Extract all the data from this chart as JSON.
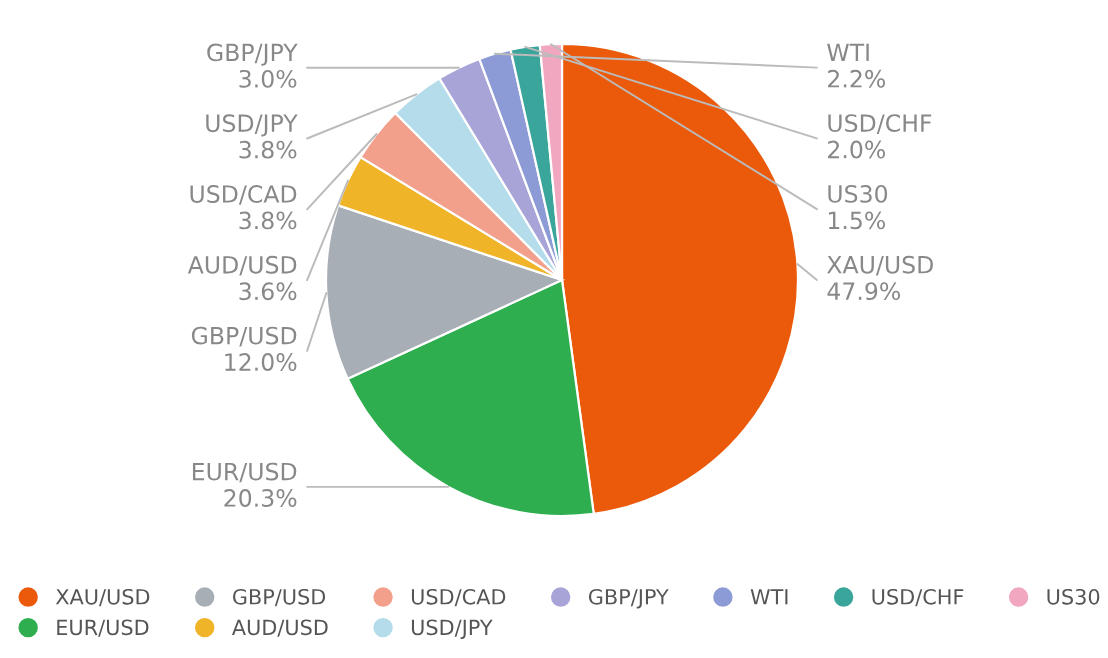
{
  "chart_data": {
    "type": "pie",
    "categories": [
      "XAU/USD",
      "EUR/USD",
      "GBP/USD",
      "AUD/USD",
      "USD/CAD",
      "USD/JPY",
      "GBP/JPY",
      "WTI",
      "USD/CHF",
      "US30"
    ],
    "values": [
      47.9,
      20.3,
      12.0,
      3.6,
      3.8,
      3.8,
      3.0,
      2.2,
      2.0,
      1.5
    ],
    "value_labels": [
      "47.9%",
      "20.3%",
      "12.0%",
      "3.6%",
      "3.8%",
      "3.8%",
      "3.0%",
      "2.2%",
      "2.0%",
      "1.5%"
    ],
    "colors": [
      "#eb5a0a",
      "#2eae4f",
      "#a8aeb5",
      "#f0b429",
      "#f2a08c",
      "#b4dcea",
      "#a8a4d8",
      "#8c9bd6",
      "#3aa59a",
      "#f2a7c0"
    ],
    "legend": "bottom"
  }
}
